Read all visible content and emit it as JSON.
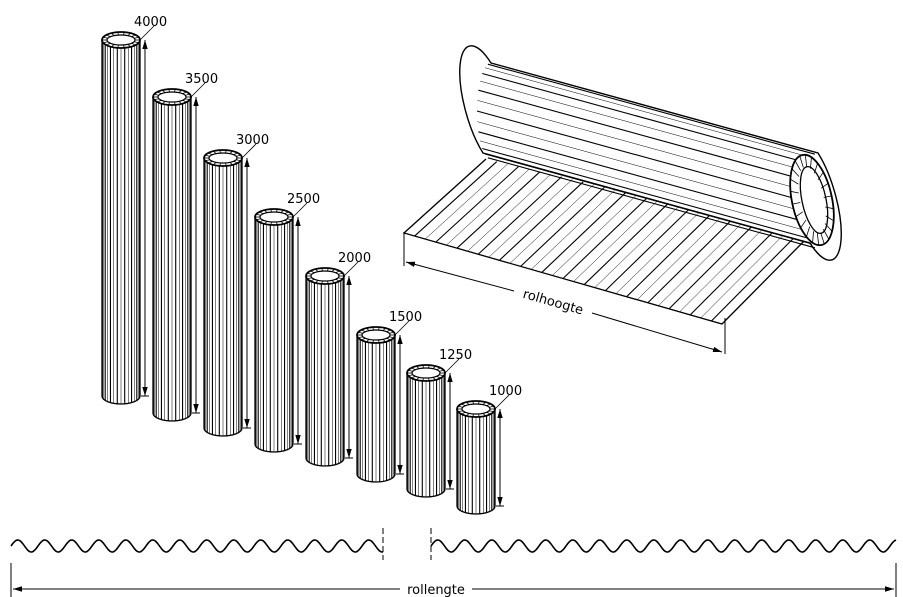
{
  "diagram": {
    "roll_sizes": [
      {
        "label": "4000"
      },
      {
        "label": "3500"
      },
      {
        "label": "3000"
      },
      {
        "label": "2500"
      },
      {
        "label": "2000"
      },
      {
        "label": "1500"
      },
      {
        "label": "1250"
      },
      {
        "label": "1000"
      }
    ],
    "roll_height_label": "rolhoogte",
    "roll_length_label": "rollengte"
  },
  "colors": {
    "line": "#000000",
    "background": "#ffffff"
  }
}
